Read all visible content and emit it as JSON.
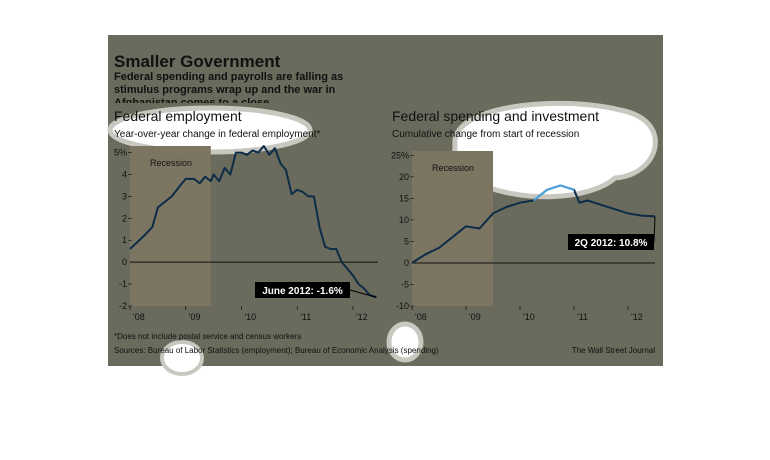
{
  "header": {
    "title": "Smaller Government",
    "subtitle": "Federal spending and payrolls are falling as stimulus programs wrap up and the war in Afghanistan comes to a close.",
    "footnote": "*Does not include postal service and census workers",
    "source": "Sources: Bureau of Labor Statistics (employment); Bureau of Economic Analysis (spending)",
    "credit": "The Wall Street Journal"
  },
  "chart_data": [
    {
      "type": "line",
      "title": "Federal employment",
      "subtitle": "Year-over-year change in federal employment*",
      "annotation": "June 2012: -1.6%",
      "recession_label": "Recession",
      "recession": [
        2008.0,
        2009.45
      ],
      "x": [
        2008.0,
        2008.25,
        2008.4,
        2008.5,
        2008.6,
        2008.75,
        2008.9,
        2009.0,
        2009.15,
        2009.25,
        2009.35,
        2009.45,
        2009.5,
        2009.6,
        2009.7,
        2009.8,
        2009.9,
        2010.0,
        2010.1,
        2010.2,
        2010.3,
        2010.4,
        2010.5,
        2010.6,
        2010.7,
        2010.8,
        2010.9,
        2011.0,
        2011.1,
        2011.2,
        2011.3,
        2011.4,
        2011.5,
        2011.6,
        2011.7,
        2011.8,
        2011.9,
        2012.0,
        2012.1,
        2012.2,
        2012.3,
        2012.42
      ],
      "series": [
        {
          "color": "#0d2c47",
          "values": [
            0.6,
            1.2,
            1.6,
            2.5,
            2.7,
            3.0,
            3.5,
            3.8,
            3.8,
            3.6,
            3.9,
            3.7,
            4.0,
            3.7,
            4.3,
            4.0,
            5.0,
            5.0,
            4.9,
            5.1,
            5.0,
            5.3,
            4.9,
            5.2,
            4.5,
            4.2,
            3.1,
            3.3,
            3.2,
            3.0,
            3.0,
            1.6,
            0.7,
            0.6,
            0.6,
            0.0,
            -0.3,
            -0.6,
            -1.0,
            -1.2,
            -1.5,
            -1.6
          ]
        }
      ],
      "xlim": [
        2008.0,
        2012.45
      ],
      "xticks": [
        {
          "value": 2008,
          "label": "'08"
        },
        {
          "value": 2009,
          "label": "'09"
        },
        {
          "value": 2010,
          "label": "'10"
        },
        {
          "value": 2011,
          "label": "'11"
        },
        {
          "value": 2012,
          "label": "'12"
        }
      ],
      "ylim": [
        -2,
        5.3
      ],
      "yticks": [
        {
          "value": 5,
          "label": "5%"
        },
        4,
        3,
        2,
        1,
        0,
        -1,
        -2
      ]
    },
    {
      "type": "line",
      "title": "Federal spending and investment",
      "subtitle": "Cumulative change from start of recession",
      "annotation": "2Q 2012: 10.8%",
      "recession_label": "Recession",
      "recession": [
        2008.0,
        2009.5
      ],
      "x": [
        2008.0,
        2008.25,
        2008.5,
        2008.75,
        2009.0,
        2009.25,
        2009.5,
        2009.75,
        2010.0,
        2010.25,
        2010.5,
        2010.75,
        2011.0,
        2011.1,
        2011.25,
        2011.5,
        2011.75,
        2012.0,
        2012.25,
        2012.5
      ],
      "series": [
        {
          "color": "#0d2c47",
          "highlight_color": "#4aa3df",
          "highlight_xlim": [
            2010.25,
            2011.0
          ],
          "values": [
            0,
            2,
            3.5,
            6,
            8.5,
            8,
            11.5,
            13,
            14,
            14.5,
            17,
            18,
            17,
            14,
            14.5,
            13.5,
            12.5,
            11.5,
            11,
            10.8
          ]
        }
      ],
      "xlim": [
        2008.0,
        2012.5
      ],
      "xticks": [
        {
          "value": 2008,
          "label": "'08"
        },
        {
          "value": 2009,
          "label": "'09"
        },
        {
          "value": 2010,
          "label": "'10"
        },
        {
          "value": 2011,
          "label": "'11"
        },
        {
          "value": 2012,
          "label": "'12"
        }
      ],
      "ylim": [
        -10,
        26
      ],
      "yticks": [
        {
          "value": 25,
          "label": "25%"
        },
        20,
        15,
        10,
        5,
        0,
        -5,
        -10
      ]
    }
  ]
}
